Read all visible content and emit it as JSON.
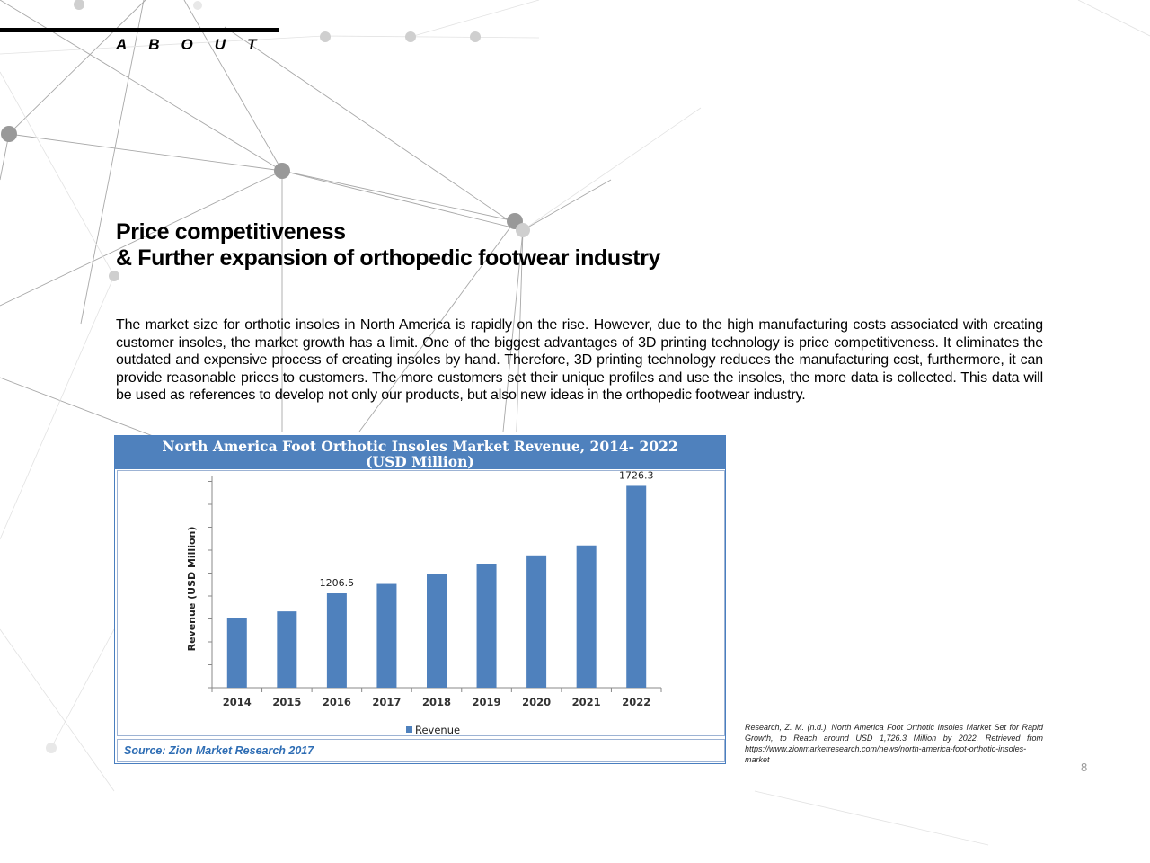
{
  "section_label": "ABOUT",
  "heading": {
    "line1": "Price competitiveness",
    "line2": "& Further expansion of orthopedic footwear industry"
  },
  "body_text": "The market size for orthotic insoles in North America is rapidly on the rise.  However, due to the high manufacturing costs associated with creating customer insoles, the market growth has a limit. One of the biggest advantages of 3D printing technology is price competitiveness. It eliminates the outdated and expensive process of creating insoles by hand. Therefore, 3D printing technology reduces the manufacturing cost, furthermore, it can provide reasonable prices to customers. The more customers set their unique profiles and use the insoles, the more data is collected. This data will be used as references to develop not only our products, but also new ideas in the orthopedic footwear industry.",
  "chart_data": {
    "type": "bar",
    "title_line1": "North America Foot Orthotic Insoles Market Revenue, 2014- 2022",
    "title_line2": "(USD Million)",
    "ylabel": "Revenue (USD Million)",
    "categories": [
      "2014",
      "2015",
      "2016",
      "2017",
      "2018",
      "2019",
      "2020",
      "2021",
      "2022"
    ],
    "series": [
      {
        "name": "Revenue",
        "values": [
          1088,
          1119,
          1206.5,
          1252,
          1299,
          1350,
          1390,
          1438,
          1726.3
        ]
      }
    ],
    "data_labels": [
      {
        "category": "2016",
        "text": "1206.5"
      },
      {
        "category": "2022",
        "text": "1726.3"
      }
    ],
    "grid": false,
    "legend_position": "bottom",
    "bar_color": "#4f81bd",
    "source": "Source: Zion Market Research 2017"
  },
  "citation": "Research, Z. M. (n.d.). North America Foot Orthotic Insoles Market Set for Rapid Growth, to Reach around USD 1,726.3 Million by 2022. Retrieved from https://www.zionmarketresearch.com/news/north-america-foot-orthotic-insoles-market",
  "page_number": "8"
}
